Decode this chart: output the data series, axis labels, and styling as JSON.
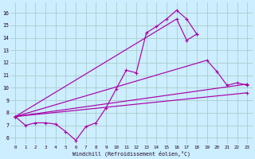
{
  "background_color": "#cceeff",
  "grid_color": "#aacccc",
  "line_color": "#aa00aa",
  "xlabel": "Windchill (Refroidissement éolien,°C)",
  "xlim": [
    -0.5,
    23.5
  ],
  "ylim": [
    5.5,
    16.8
  ],
  "yticks": [
    6,
    7,
    8,
    9,
    10,
    11,
    12,
    13,
    14,
    15,
    16
  ],
  "xticks": [
    0,
    1,
    2,
    3,
    4,
    5,
    6,
    7,
    8,
    9,
    10,
    11,
    12,
    13,
    14,
    15,
    16,
    17,
    18,
    19,
    20,
    21,
    22,
    23
  ],
  "line1_x": [
    0,
    1,
    2,
    3,
    4,
    5,
    6,
    7,
    8,
    9,
    10,
    11,
    12,
    13,
    14,
    15,
    16,
    17,
    18
  ],
  "line1_y": [
    7.7,
    7.0,
    7.2,
    7.2,
    7.1,
    6.5,
    5.8,
    6.9,
    7.2,
    8.4,
    9.9,
    11.4,
    11.2,
    14.4,
    14.9,
    15.5,
    16.2,
    15.5,
    14.3
  ],
  "line2_x": [
    0,
    16,
    17,
    18
  ],
  "line2_y": [
    7.7,
    15.5,
    13.8,
    14.3
  ],
  "line3_x": [
    0,
    19,
    20,
    21,
    22,
    23
  ],
  "line3_y": [
    7.7,
    12.2,
    11.3,
    10.2,
    10.4,
    10.2
  ],
  "line4_x": [
    0,
    23
  ],
  "line4_y": [
    7.7,
    10.3
  ],
  "line5_x": [
    0,
    23
  ],
  "line5_y": [
    7.7,
    9.6
  ]
}
